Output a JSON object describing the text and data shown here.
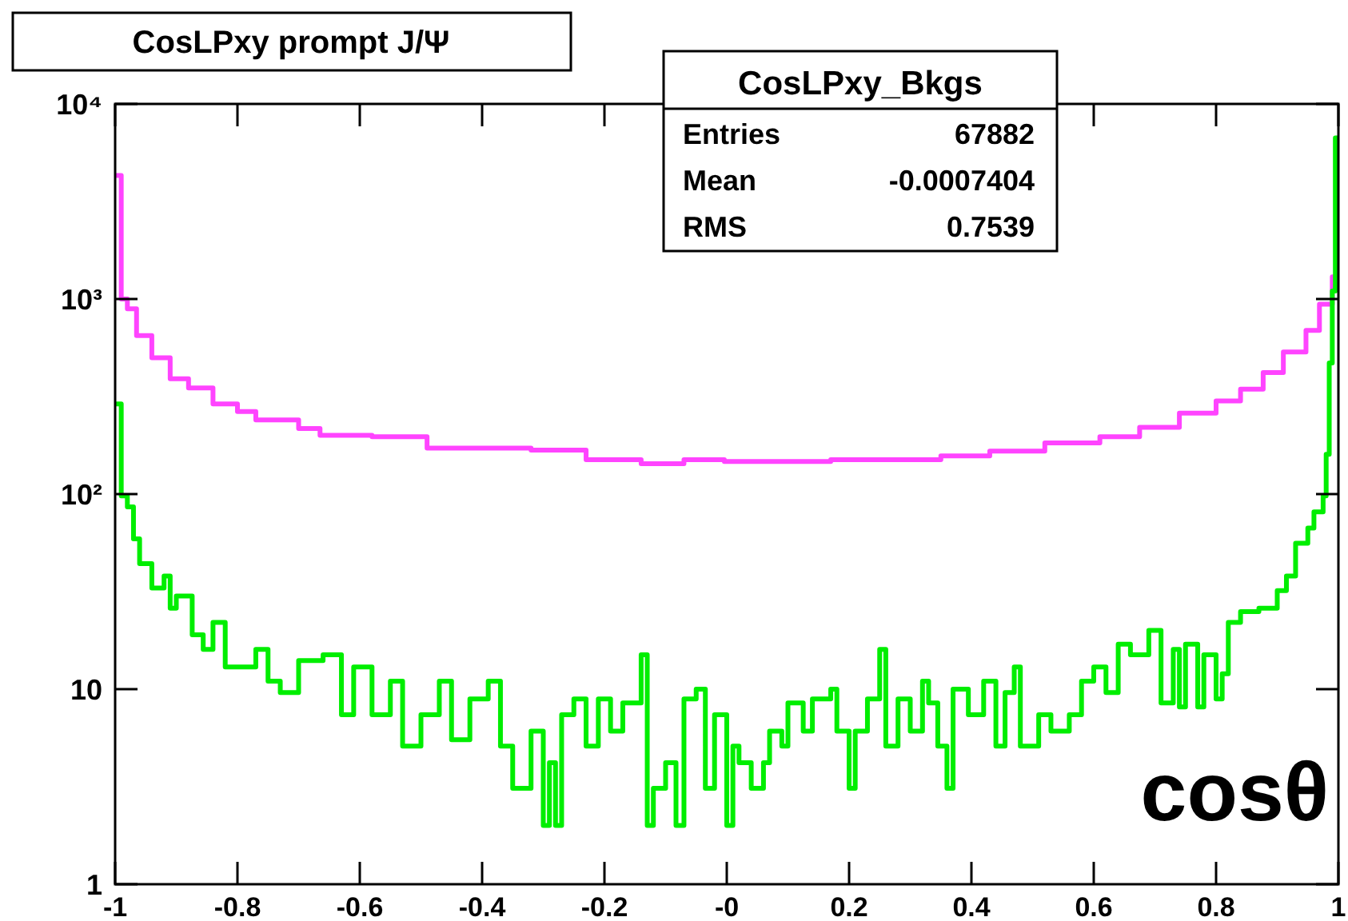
{
  "chart_data": {
    "type": "step",
    "title": "CosLPxy prompt J/Ψ",
    "xlabel": "cosθ",
    "annotations": [
      "CosLPxy_Bkgs",
      "Entries",
      "67882",
      "Mean",
      "-0.0007404",
      "RMS",
      "0.7539"
    ],
    "log": "y",
    "grid": false,
    "line_style": "solid",
    "marker": "none",
    "xlim": [
      -1,
      1
    ],
    "ylim": [
      1,
      10000
    ],
    "xticks": [
      -1,
      -0.8,
      -0.6,
      -0.4,
      -0.2,
      {
        "value": 0,
        "label": "-0"
      },
      0.2,
      0.4,
      0.6,
      0.8,
      1
    ],
    "yticks": [
      1,
      10,
      {
        "value": 100,
        "label": "10²"
      },
      {
        "value": 1000,
        "label": "10³"
      },
      {
        "value": 10000,
        "label": "10⁴"
      }
    ],
    "series": [
      {
        "color": "#ff44ff",
        "x": [
          -1,
          -0.99,
          -0.98,
          -0.965,
          -0.94,
          -0.91,
          -0.88,
          -0.84,
          -0.8,
          -0.77,
          -0.7,
          -0.665,
          -0.58,
          -0.49,
          -0.4,
          -0.32,
          -0.23,
          -0.14,
          -0.07,
          -0.004,
          0.17,
          0.35,
          0.43,
          0.52,
          0.61,
          0.675,
          0.74,
          0.8,
          0.84,
          0.877,
          0.91,
          0.947,
          0.969,
          0.99
        ],
        "values": [
          4300,
          1000,
          890,
          650,
          500,
          390,
          350,
          290,
          265,
          240,
          217,
          200,
          197,
          172,
          172,
          168,
          150,
          143,
          150,
          147,
          150,
          157,
          166,
          183,
          197,
          220,
          260,
          300,
          345,
          420,
          535,
          690,
          940,
          1300
        ]
      },
      {
        "color": "#00ee00",
        "x": [
          -1,
          -0.99,
          -0.98,
          -0.97,
          -0.96,
          -0.94,
          -0.92,
          -0.91,
          -0.9,
          -0.874,
          -0.856,
          -0.84,
          -0.82,
          -0.77,
          -0.75,
          -0.73,
          -0.7,
          -0.66,
          -0.63,
          -0.61,
          -0.58,
          -0.55,
          -0.53,
          -0.5,
          -0.47,
          -0.45,
          -0.42,
          -0.39,
          -0.37,
          -0.35,
          -0.32,
          -0.3,
          -0.29,
          -0.28,
          -0.27,
          -0.25,
          -0.23,
          -0.21,
          -0.19,
          -0.17,
          -0.14,
          -0.13,
          -0.12,
          -0.1,
          -0.083,
          -0.07,
          -0.05,
          -0.035,
          -0.02,
          -0.01,
          0,
          0.01,
          0.02,
          0.04,
          0.06,
          0.07,
          0.09,
          0.1,
          0.125,
          0.14,
          0.17,
          0.18,
          0.2,
          0.21,
          0.23,
          0.25,
          0.26,
          0.28,
          0.3,
          0.32,
          0.33,
          0.345,
          0.36,
          0.37,
          0.395,
          0.42,
          0.44,
          0.455,
          0.47,
          0.48,
          0.51,
          0.53,
          0.56,
          0.58,
          0.6,
          0.62,
          0.64,
          0.66,
          0.69,
          0.71,
          0.73,
          0.74,
          0.75,
          0.77,
          0.78,
          0.8,
          0.81,
          0.82,
          0.84,
          0.87,
          0.9,
          0.915,
          0.93,
          0.95,
          0.96,
          0.975,
          0.98,
          0.985,
          0.99,
          0.995
        ],
        "values": [
          290,
          98,
          86,
          59,
          44,
          33,
          38,
          26,
          30,
          19,
          16,
          22,
          13,
          16,
          11,
          9.6,
          14,
          15,
          7.4,
          13,
          7.4,
          11,
          5.1,
          7.4,
          11,
          5.5,
          8.9,
          11,
          5.1,
          3.1,
          6.1,
          2,
          4.2,
          2,
          7.4,
          8.9,
          5.1,
          8.9,
          6.1,
          8.5,
          15,
          2,
          3.1,
          4.2,
          2,
          8.9,
          10,
          3.1,
          7.4,
          7.4,
          2,
          5.1,
          4.2,
          3.1,
          4.2,
          6.1,
          5.1,
          8.5,
          6.1,
          8.9,
          10,
          6.1,
          3.1,
          6.1,
          8.9,
          16,
          5.1,
          8.9,
          6.1,
          11,
          8.5,
          5.1,
          3.1,
          10,
          7.4,
          11,
          5.1,
          9.6,
          13,
          5.1,
          7.4,
          6.1,
          7.4,
          11,
          13,
          9.6,
          17,
          15,
          20,
          8.5,
          16,
          8.1,
          17,
          8.1,
          15,
          8.9,
          12,
          22,
          25,
          26,
          32,
          38,
          56,
          67,
          81,
          98,
          160,
          470,
          1100,
          6700
        ]
      }
    ]
  }
}
